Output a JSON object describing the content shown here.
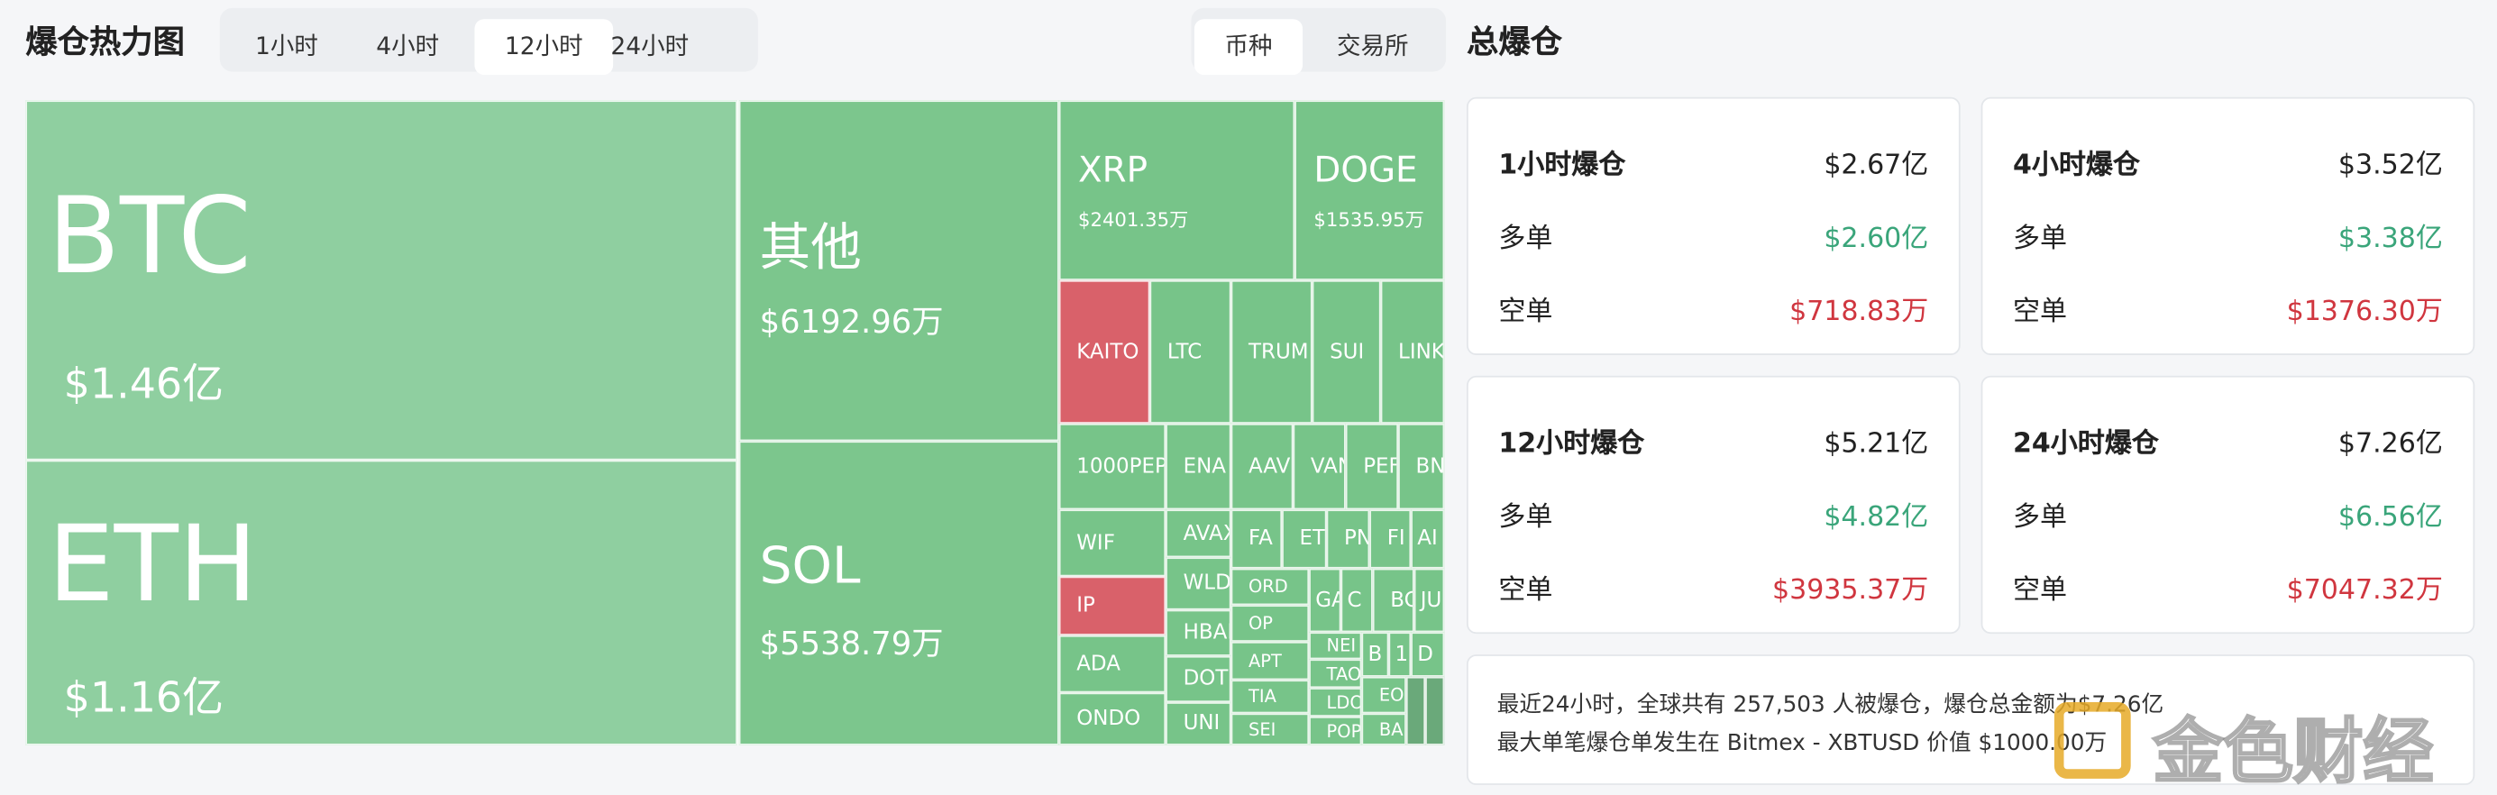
{
  "header": {
    "title": "爆仓热力图",
    "time_tabs": [
      "1小时",
      "4小时",
      "12小时",
      "24小时"
    ],
    "active_time_tab": "12小时",
    "group_tabs": [
      "币种",
      "交易所"
    ],
    "active_group_tab": "币种"
  },
  "treemap": {
    "tiles": [
      {
        "label": "BTC",
        "value": "$1.46亿",
        "color": "#8fcfa0"
      },
      {
        "label": "ETH",
        "value": "$1.16亿",
        "color": "#8fcfa0"
      },
      {
        "label": "其他",
        "value": "$6192.96万",
        "color": "#7cc68d"
      },
      {
        "label": "SOL",
        "value": "$5538.79万",
        "color": "#7cc68d"
      },
      {
        "label": "XRP",
        "value": "$2401.35万",
        "color": "#77c489"
      },
      {
        "label": "DOGE",
        "value": "$1535.95万",
        "color": "#77c489"
      },
      {
        "label": "KAITO",
        "color": "#d9616a"
      },
      {
        "label": "LTC",
        "color": "#77c489"
      },
      {
        "label": "TRUM",
        "color": "#77c489"
      },
      {
        "label": "SUI",
        "color": "#77c489"
      },
      {
        "label": "LINK",
        "color": "#77c489"
      },
      {
        "label": "1000PEP",
        "color": "#77c489"
      },
      {
        "label": "ENA",
        "color": "#77c489"
      },
      {
        "label": "AAV",
        "color": "#77c489"
      },
      {
        "label": "VAN",
        "color": "#77c489"
      },
      {
        "label": "PEF",
        "color": "#77c489"
      },
      {
        "label": "BN",
        "color": "#77c489"
      },
      {
        "label": "WIF",
        "color": "#77c489"
      },
      {
        "label": "IP",
        "color": "#d9616a"
      },
      {
        "label": "ADA",
        "color": "#77c489"
      },
      {
        "label": "ONDO",
        "color": "#77c489"
      },
      {
        "label": "AVAX",
        "color": "#77c489"
      },
      {
        "label": "WLD",
        "color": "#77c489"
      },
      {
        "label": "HBAR",
        "color": "#77c489"
      },
      {
        "label": "DOT",
        "color": "#77c489"
      },
      {
        "label": "UNI",
        "color": "#77c489"
      },
      {
        "label": "FA",
        "color": "#77c489"
      },
      {
        "label": "ET",
        "color": "#77c489"
      },
      {
        "label": "PN",
        "color": "#77c489"
      },
      {
        "label": "FI",
        "color": "#77c489"
      },
      {
        "label": "AI",
        "color": "#77c489"
      },
      {
        "label": "ORD",
        "color": "#77c489"
      },
      {
        "label": "OP",
        "color": "#77c489"
      },
      {
        "label": "APT",
        "color": "#77c489"
      },
      {
        "label": "TIA",
        "color": "#77c489"
      },
      {
        "label": "SEI",
        "color": "#77c489"
      },
      {
        "label": "GA",
        "color": "#77c489"
      },
      {
        "label": "C",
        "color": "#77c489"
      },
      {
        "label": "BC",
        "color": "#77c489"
      },
      {
        "label": "JU",
        "color": "#77c489"
      },
      {
        "label": "NEI",
        "color": "#77c489"
      },
      {
        "label": "TAO",
        "color": "#77c489"
      },
      {
        "label": "LDO",
        "color": "#77c489"
      },
      {
        "label": "POP",
        "color": "#77c489"
      },
      {
        "label": "B",
        "color": "#77c489"
      },
      {
        "label": "1",
        "color": "#77c489"
      },
      {
        "label": "D",
        "color": "#77c489"
      },
      {
        "label": "EO",
        "color": "#77c489"
      },
      {
        "label": "BA",
        "color": "#77c489"
      },
      {
        "color": "#6aa97a"
      },
      {
        "color": "#6aa97a"
      }
    ]
  },
  "summary": {
    "title": "总爆仓",
    "cards": [
      {
        "title": "1小时爆仓",
        "total": "$2.67亿",
        "long_label": "多单",
        "long": "$2.60亿",
        "short_label": "空单",
        "short": "$718.83万"
      },
      {
        "title": "4小时爆仓",
        "total": "$3.52亿",
        "long_label": "多单",
        "long": "$3.38亿",
        "short_label": "空单",
        "short": "$1376.30万"
      },
      {
        "title": "12小时爆仓",
        "total": "$5.21亿",
        "long_label": "多单",
        "long": "$4.82亿",
        "short_label": "空单",
        "short": "$3935.37万"
      },
      {
        "title": "24小时爆仓",
        "total": "$7.26亿",
        "long_label": "多单",
        "long": "$6.56亿",
        "short_label": "空单",
        "short": "$7047.32万"
      }
    ]
  },
  "notice": {
    "lines": [
      "最近24小时，全球共有 257,503 人被爆仓，爆仓总金额为$7.26亿",
      "最大单笔爆仓单发生在 Bitmex - XBTUSD 价值 $1000.00万"
    ]
  },
  "watermark": "金色财经"
}
